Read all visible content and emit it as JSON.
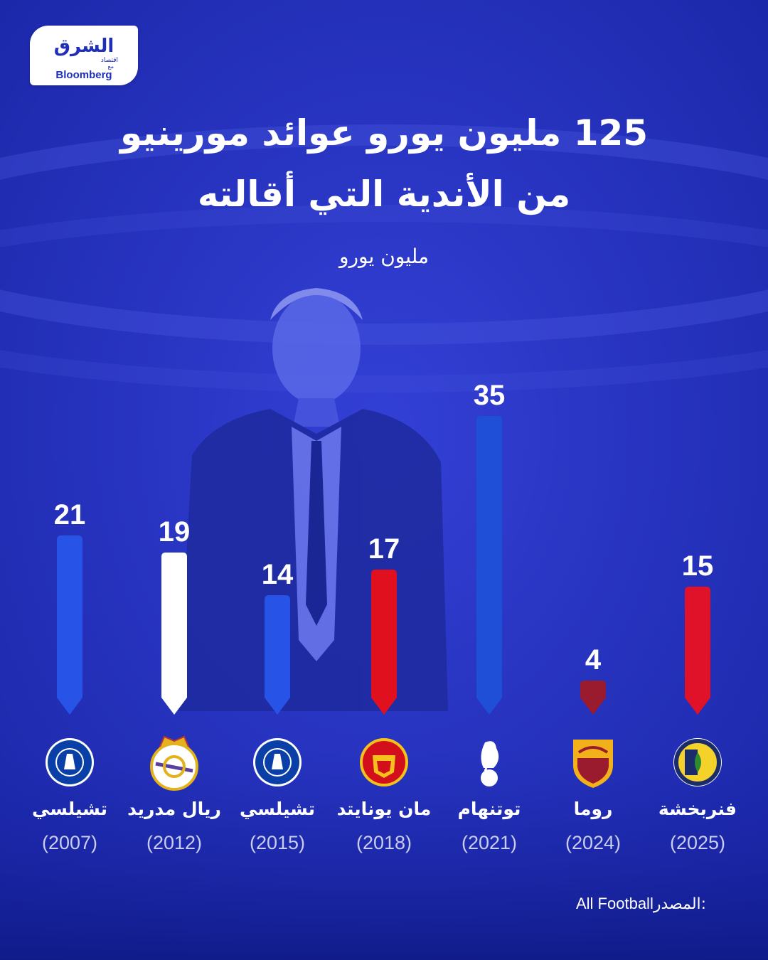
{
  "brand": {
    "arabic_name": "الشرق",
    "arabic_sub": "اقتصاد",
    "with_label": "مع",
    "english_name": "Bloomberg"
  },
  "title": {
    "line1": "125 مليون يورو عوائد مورينيو",
    "line2": "من الأندية التي أقالته"
  },
  "source": {
    "label": "المصدر:",
    "value": "All Football"
  },
  "colors": {
    "background": "#2633c4",
    "chelsea": "#2753e6",
    "real_madrid": "#ffffff",
    "man_united": "#e0101f",
    "tottenham": "#1f4fd6",
    "roma": "#9a1b2e",
    "fenerbahce": "#e0122a"
  },
  "chart_data": {
    "type": "bar",
    "title": "125 مليون يورو عوائد مورينيو من الأندية التي أقالته",
    "ylabel": "مليون يورو",
    "ylim": [
      0,
      35
    ],
    "grid": false,
    "legend": "none",
    "categories": [
      {
        "name": "تشيلسي",
        "year": "(2007)",
        "logo": "chelsea-crest-icon"
      },
      {
        "name": "ريال مدريد",
        "year": "(2012)",
        "logo": "real-madrid-crest-icon"
      },
      {
        "name": "تشيلسي",
        "year": "(2015)",
        "logo": "chelsea-crest-icon"
      },
      {
        "name": "مان يونايتد",
        "year": "(2018)",
        "logo": "man-united-crest-icon"
      },
      {
        "name": "توتنهام",
        "year": "(2021)",
        "logo": "tottenham-crest-icon"
      },
      {
        "name": "روما",
        "year": "(2024)",
        "logo": "roma-crest-icon"
      },
      {
        "name": "فنربخشة",
        "year": "(2025)",
        "logo": "fenerbahce-crest-icon"
      }
    ],
    "values": [
      21,
      19,
      14,
      17,
      35,
      4,
      15
    ],
    "bar_colors": [
      "#2753e6",
      "#ffffff",
      "#2753e6",
      "#e0101f",
      "#1f4fd6",
      "#9a1b2e",
      "#e0122a"
    ]
  }
}
